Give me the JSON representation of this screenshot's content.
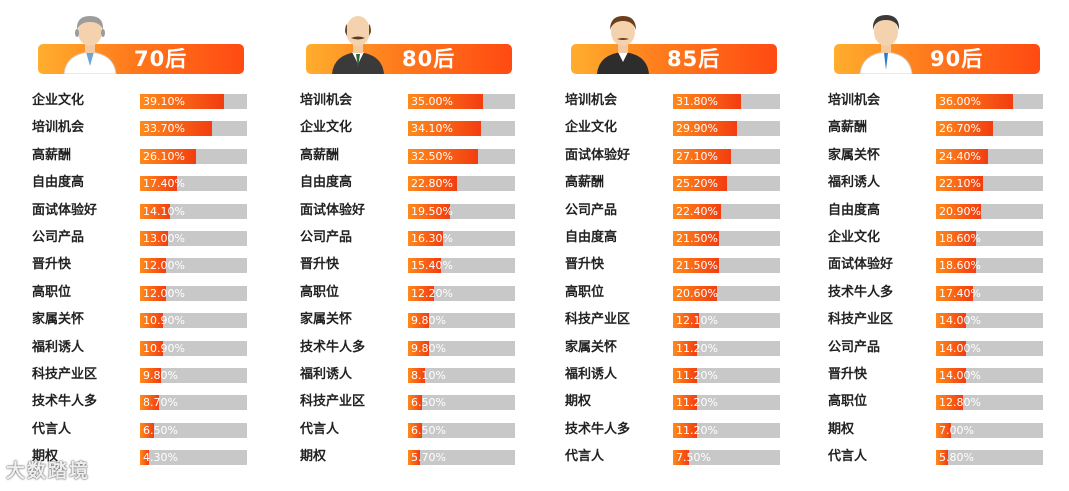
{
  "chart_data": [
    {
      "type": "bar",
      "title": "70后",
      "categories": [
        "企业文化",
        "培训机会",
        "高薪酬",
        "自由度高",
        "面试体验好",
        "公司产品",
        "晋升快",
        "高职位",
        "家属关怀",
        "福利诱人",
        "科技产业区",
        "技术牛人多",
        "代言人",
        "期权"
      ],
      "values": [
        39.1,
        33.7,
        26.1,
        17.4,
        14.1,
        13.0,
        12.0,
        12.0,
        10.9,
        10.9,
        9.8,
        8.7,
        6.5,
        4.3
      ],
      "value_labels": [
        "39.10%",
        "33.70%",
        "26.10%",
        "17.40%",
        "14.10%",
        "13.00%",
        "12.00%",
        "12.00%",
        "10.90%",
        "10.90%",
        "9.80%",
        "8.70%",
        "6.50%",
        "4.30%"
      ],
      "xlim": [
        0,
        50
      ],
      "avatar_icon": "older-man-gray-hair-icon"
    },
    {
      "type": "bar",
      "title": "80后",
      "categories": [
        "培训机会",
        "企业文化",
        "高薪酬",
        "自由度高",
        "面试体验好",
        "公司产品",
        "晋升快",
        "高职位",
        "家属关怀",
        "技术牛人多",
        "福利诱人",
        "科技产业区",
        "代言人",
        "期权"
      ],
      "values": [
        35.0,
        34.1,
        32.5,
        22.8,
        19.5,
        16.3,
        15.4,
        12.2,
        9.8,
        9.8,
        8.1,
        6.5,
        6.5,
        5.7
      ],
      "value_labels": [
        "35.00%",
        "34.10%",
        "32.50%",
        "22.80%",
        "19.50%",
        "16.30%",
        "15.40%",
        "12.20%",
        "9.80%",
        "9.80%",
        "8.10%",
        "6.50%",
        "6.50%",
        "5.70%"
      ],
      "xlim": [
        0,
        50
      ],
      "avatar_icon": "bald-man-mustache-icon"
    },
    {
      "type": "bar",
      "title": "85后",
      "categories": [
        "培训机会",
        "企业文化",
        "面试体验好",
        "高薪酬",
        "公司产品",
        "自由度高",
        "晋升快",
        "高职位",
        "科技产业区",
        "家属关怀",
        "福利诱人",
        "期权",
        "技术牛人多",
        "代言人"
      ],
      "values": [
        31.8,
        29.9,
        27.1,
        25.2,
        22.4,
        21.5,
        21.5,
        20.6,
        12.1,
        11.2,
        11.2,
        11.2,
        11.2,
        7.5
      ],
      "value_labels": [
        "31.80%",
        "29.90%",
        "27.10%",
        "25.20%",
        "22.40%",
        "21.50%",
        "21.50%",
        "20.60%",
        "12.10%",
        "11.20%",
        "11.20%",
        "11.20%",
        "11.20%",
        "7.50%"
      ],
      "xlim": [
        0,
        50
      ],
      "avatar_icon": "man-brown-hair-icon"
    },
    {
      "type": "bar",
      "title": "90后",
      "categories": [
        "培训机会",
        "高薪酬",
        "家属关怀",
        "福利诱人",
        "自由度高",
        "企业文化",
        "面试体验好",
        "技术牛人多",
        "科技产业区",
        "公司产品",
        "晋升快",
        "高职位",
        "期权",
        "代言人"
      ],
      "values": [
        36.0,
        26.7,
        24.4,
        22.1,
        20.9,
        18.6,
        18.6,
        17.4,
        14.0,
        14.0,
        14.0,
        12.8,
        7.0,
        5.8
      ],
      "value_labels": [
        "36.00%",
        "26.70%",
        "24.40%",
        "22.10%",
        "20.90%",
        "18.60%",
        "18.60%",
        "17.40%",
        "14.00%",
        "14.00%",
        "14.00%",
        "12.80%",
        "7.00%",
        "5.80%"
      ],
      "xlim": [
        0,
        50
      ],
      "avatar_icon": "young-man-blue-tie-icon"
    }
  ],
  "watermark": "大数踏境",
  "colors": {
    "bar_fill": "#f25a14",
    "bar_track": "#c8c8c8",
    "header_start": "#ffae2e",
    "header_end": "#ff4a12"
  }
}
